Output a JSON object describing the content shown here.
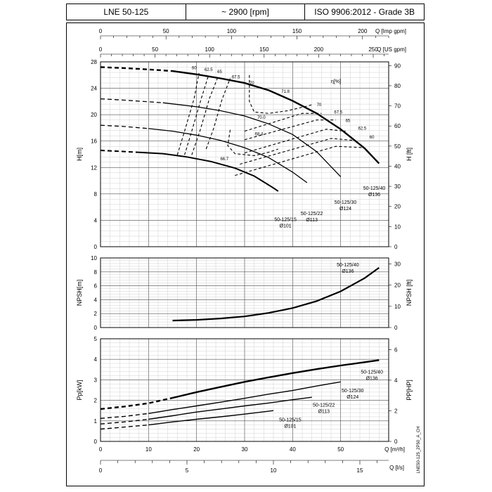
{
  "header": {
    "model": "LNE 50-125",
    "speed": "~ 2900 [rpm]",
    "standard": "ISO 9906:2012 - Grade 3B"
  },
  "side_code": "LNE50-125_2P50_A_CH",
  "chart_data": [
    {
      "type": "line",
      "name": "head",
      "xlabel": "Q [m³/h]",
      "ylabel_left": "H[m]",
      "ylabel_right": "H [ft]",
      "xlim": [
        0,
        60
      ],
      "ylim": [
        0,
        28
      ],
      "yticks_left": [
        0,
        4,
        8,
        12,
        16,
        20,
        24,
        28
      ],
      "yticks_right": [
        0,
        10,
        20,
        30,
        40,
        50,
        60,
        70,
        80,
        90
      ],
      "top_axes": [
        {
          "label": "Q [Imp gpm]",
          "ticks": [
            0,
            50,
            100,
            150,
            200
          ],
          "per_m3h": 3.6662
        },
        {
          "label": "Q [US gpm]",
          "ticks": [
            0,
            50,
            100,
            150,
            200,
            250
          ],
          "per_m3h": 4.4029
        }
      ],
      "grid": true,
      "efficiency_label": "η[%]",
      "series": [
        {
          "name": "50-125/40",
          "diameter": "Ø136",
          "dashed": [
            [
              0,
              27.2
            ],
            [
              5,
              27.05
            ],
            [
              10,
              26.85
            ],
            [
              15,
              26.6
            ]
          ],
          "points": [
            [
              15,
              26.6
            ],
            [
              20,
              26.1
            ],
            [
              25,
              25.5
            ],
            [
              30,
              24.8
            ],
            [
              35,
              23.7
            ],
            [
              40,
              22.1
            ],
            [
              45,
              20.2
            ],
            [
              50,
              17.8
            ],
            [
              55,
              14.9
            ],
            [
              58,
              12.6
            ]
          ]
        },
        {
          "name": "50-125/30",
          "diameter": "Ø124",
          "dashed": [
            [
              0,
              22.4
            ],
            [
              5,
              22.2
            ],
            [
              10,
              21.95
            ],
            [
              13,
              21.8
            ]
          ],
          "points": [
            [
              13,
              21.8
            ],
            [
              20,
              21.2
            ],
            [
              25,
              20.6
            ],
            [
              30,
              19.8
            ],
            [
              35,
              18.6
            ],
            [
              40,
              17.0
            ],
            [
              45,
              14.4
            ],
            [
              50,
              10.6
            ]
          ]
        },
        {
          "name": "50-125/22",
          "diameter": "Ø113",
          "dashed": [
            [
              0,
              18.4
            ],
            [
              5,
              18.2
            ],
            [
              10,
              17.9
            ]
          ],
          "points": [
            [
              10,
              17.9
            ],
            [
              15,
              17.5
            ],
            [
              20,
              16.9
            ],
            [
              25,
              16.1
            ],
            [
              30,
              15.0
            ],
            [
              35,
              13.5
            ],
            [
              40,
              11.3
            ],
            [
              43,
              9.7
            ]
          ]
        },
        {
          "name": "50-125/15",
          "diameter": "Ø101",
          "dashed": [
            [
              0,
              14.6
            ],
            [
              4,
              14.45
            ],
            [
              8,
              14.3
            ]
          ],
          "points": [
            [
              8,
              14.3
            ],
            [
              13,
              14.1
            ],
            [
              18,
              13.6
            ],
            [
              23,
              12.9
            ],
            [
              28,
              11.9
            ],
            [
              32,
              10.7
            ],
            [
              36,
              8.9
            ],
            [
              37,
              8.4
            ]
          ]
        }
      ],
      "efficiency_values": [
        "60",
        "62.5",
        "65",
        "67.5",
        "70",
        "71.8",
        "70",
        "67.5",
        "65",
        "62.5",
        "60",
        "70.0",
        "68.4",
        "66.7"
      ]
    },
    {
      "type": "line",
      "name": "npsh",
      "xlabel": "Q [m³/h]",
      "ylabel_left": "NPSH[m]",
      "ylabel_right": "NPSH [ft]",
      "xlim": [
        0,
        60
      ],
      "ylim": [
        0,
        10
      ],
      "yticks_left": [
        0,
        2,
        4,
        6,
        8,
        10
      ],
      "yticks_right": [
        0,
        10,
        20,
        30
      ],
      "grid": true,
      "series": [
        {
          "name": "50-125/40",
          "diameter": "Ø136",
          "points": [
            [
              15,
              1.0
            ],
            [
              20,
              1.1
            ],
            [
              25,
              1.3
            ],
            [
              30,
              1.6
            ],
            [
              35,
              2.1
            ],
            [
              40,
              2.8
            ],
            [
              45,
              3.8
            ],
            [
              50,
              5.2
            ],
            [
              55,
              7.1
            ],
            [
              58,
              8.6
            ]
          ]
        }
      ]
    },
    {
      "type": "line",
      "name": "power",
      "xlabel": "Q [m³/h]",
      "xlabel_bottom": "Q [l/s]",
      "ylabel_left": "Pp[kW]",
      "ylabel_right": "PP[HP]",
      "xlim": [
        0,
        60
      ],
      "ylim": [
        0,
        5
      ],
      "yticks_left": [
        0,
        1,
        2,
        3,
        4,
        5
      ],
      "yticks_right": [
        0,
        2,
        4,
        6
      ],
      "xticks": [
        0,
        10,
        20,
        30,
        40,
        50
      ],
      "xticks_ls": [
        0,
        5,
        10,
        15
      ],
      "grid": true,
      "series": [
        {
          "name": "50-125/40",
          "diameter": "Ø136",
          "dashed": [
            [
              0,
              1.58
            ],
            [
              5,
              1.7
            ],
            [
              10,
              1.86
            ],
            [
              15,
              2.12
            ]
          ],
          "points": [
            [
              15,
              2.12
            ],
            [
              20,
              2.4
            ],
            [
              25,
              2.65
            ],
            [
              30,
              2.9
            ],
            [
              35,
              3.12
            ],
            [
              40,
              3.33
            ],
            [
              45,
              3.52
            ],
            [
              50,
              3.7
            ],
            [
              55,
              3.86
            ],
            [
              58,
              3.96
            ]
          ]
        },
        {
          "name": "50-125/30",
          "diameter": "Ø124",
          "dashed": [
            [
              0,
              1.12
            ],
            [
              5,
              1.22
            ],
            [
              10,
              1.36
            ]
          ],
          "points": [
            [
              10,
              1.36
            ],
            [
              15,
              1.55
            ],
            [
              20,
              1.73
            ],
            [
              25,
              1.91
            ],
            [
              30,
              2.1
            ],
            [
              35,
              2.3
            ],
            [
              40,
              2.48
            ],
            [
              45,
              2.7
            ],
            [
              50,
              2.9
            ]
          ]
        },
        {
          "name": "50-125/22",
          "diameter": "Ø113",
          "dashed": [
            [
              0,
              0.85
            ],
            [
              5,
              0.95
            ],
            [
              10,
              1.08
            ]
          ],
          "points": [
            [
              10,
              1.08
            ],
            [
              15,
              1.25
            ],
            [
              20,
              1.43
            ],
            [
              25,
              1.58
            ],
            [
              30,
              1.73
            ],
            [
              35,
              1.87
            ],
            [
              40,
              2.03
            ],
            [
              44,
              2.15
            ]
          ]
        },
        {
          "name": "50-125/15",
          "diameter": "Ø101",
          "dashed": [
            [
              0,
              0.6
            ],
            [
              5,
              0.7
            ],
            [
              10,
              0.8
            ]
          ],
          "points": [
            [
              10,
              0.8
            ],
            [
              15,
              0.95
            ],
            [
              20,
              1.08
            ],
            [
              25,
              1.2
            ],
            [
              30,
              1.33
            ],
            [
              36,
              1.5
            ]
          ]
        }
      ]
    }
  ]
}
